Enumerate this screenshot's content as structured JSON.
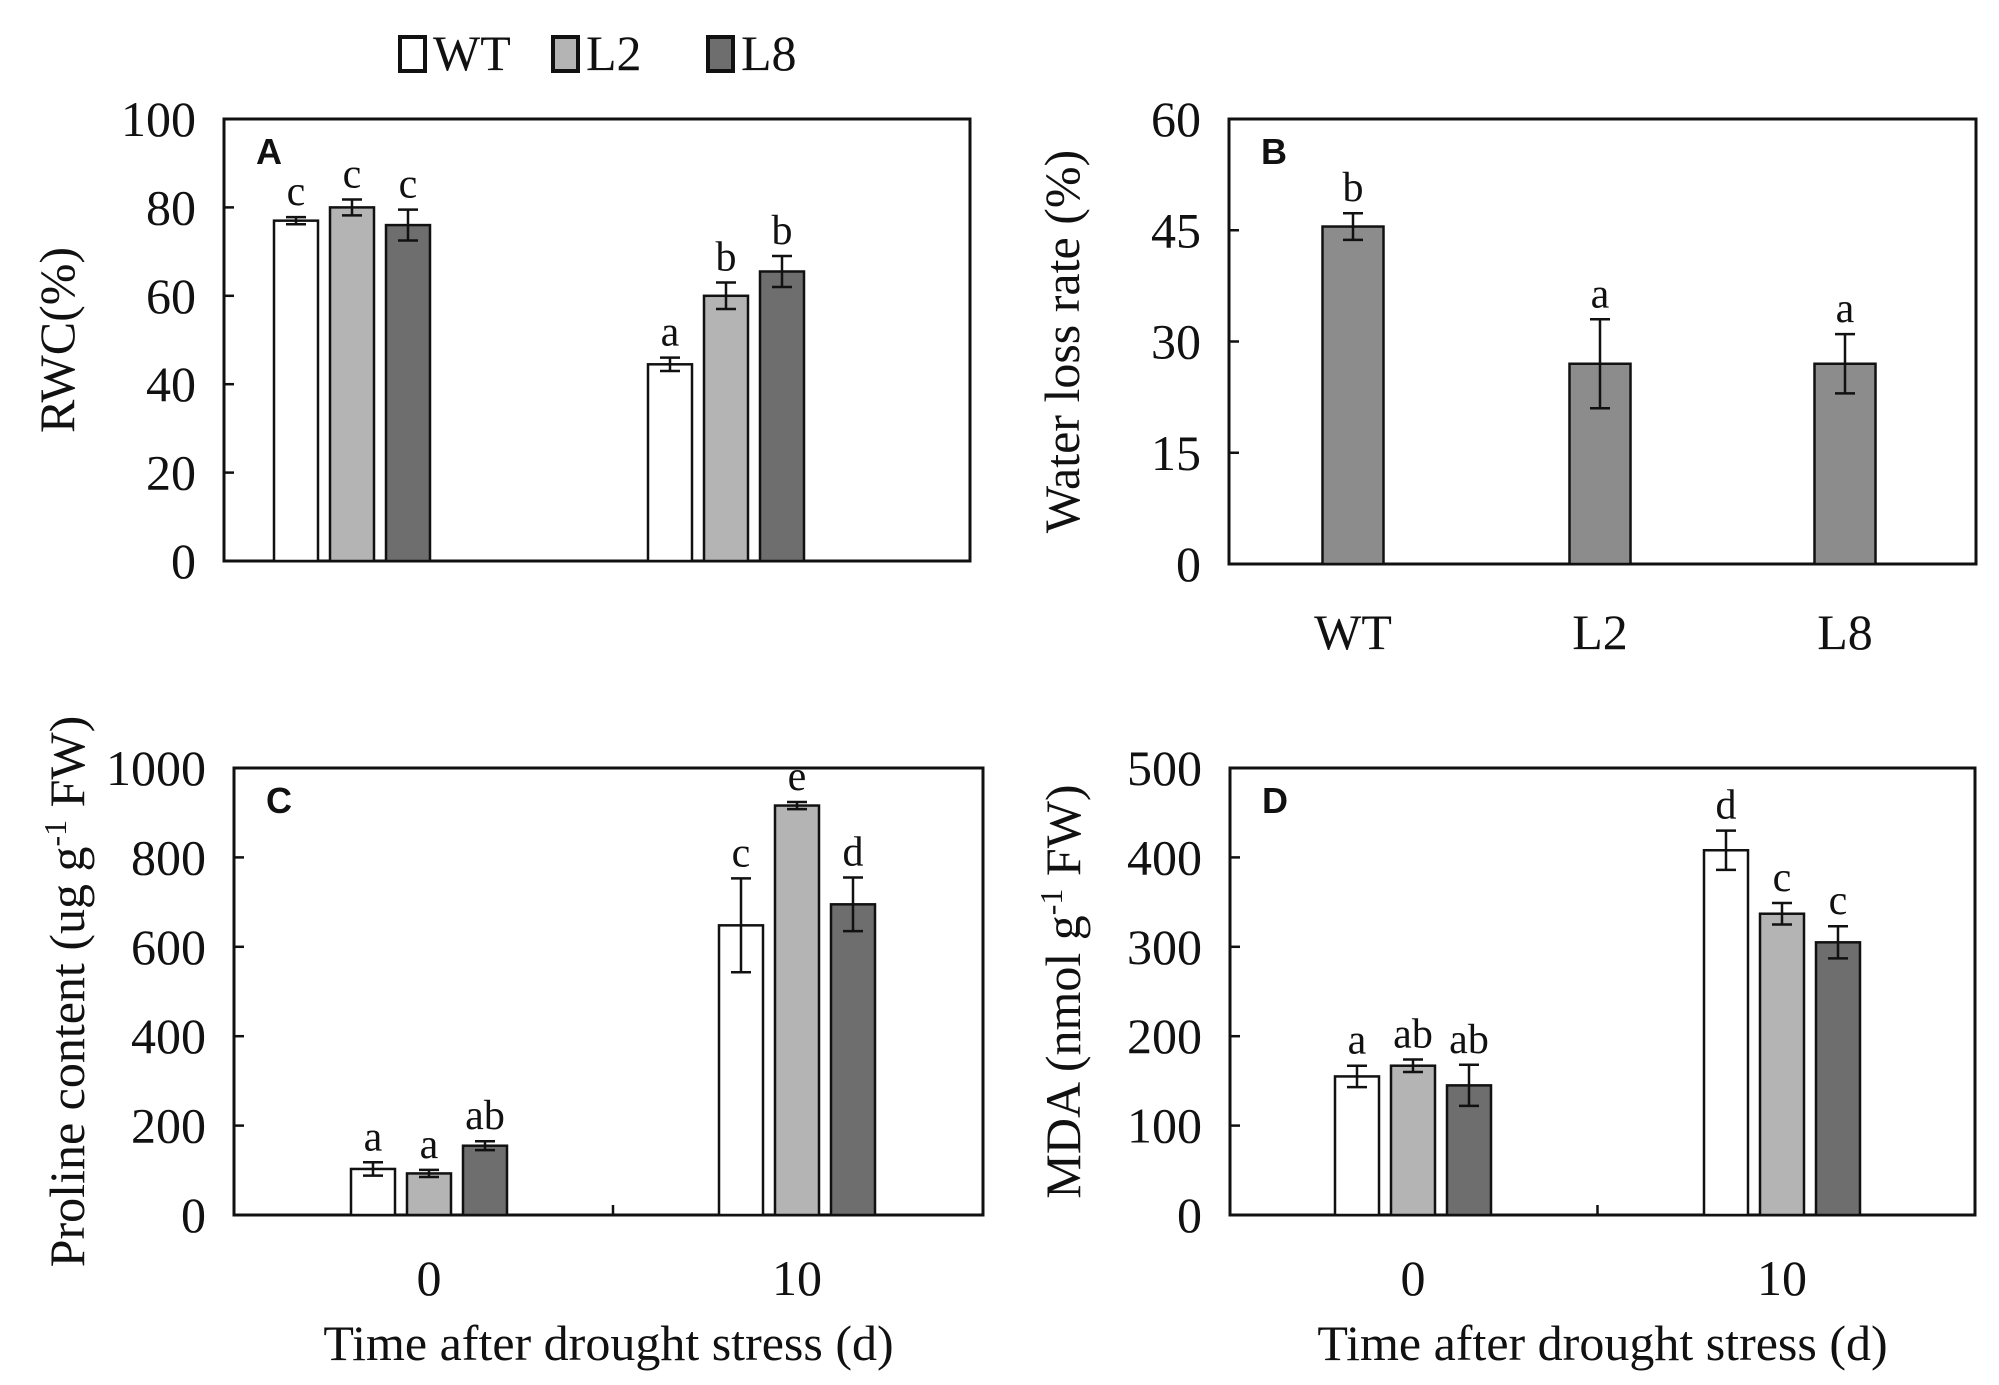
{
  "legend": {
    "items": [
      {
        "label": "WT",
        "color": "#ffffff"
      },
      {
        "label": "L2",
        "color": "#b4b4b4"
      },
      {
        "label": "L8",
        "color": "#6e6e6e"
      }
    ]
  },
  "colors": {
    "WT": "#ffffff",
    "L2": "#b4b4b4",
    "L8": "#6e6e6e",
    "single": "#8c8c8c",
    "stroke": "#111111"
  },
  "chart_data": [
    {
      "id": "A",
      "type": "bar",
      "panel_label": "A",
      "title": "",
      "xlabel": "",
      "ylabel": "RWC(%)",
      "ylim": [
        0,
        100
      ],
      "yticks": [
        0,
        20,
        40,
        60,
        80,
        100
      ],
      "categories": [
        "",
        ""
      ],
      "series": [
        {
          "name": "WT",
          "values": [
            77,
            44.5
          ],
          "errors": [
            0.8,
            1.5
          ],
          "letters": [
            "c",
            "a"
          ]
        },
        {
          "name": "L2",
          "values": [
            80,
            60
          ],
          "errors": [
            1.8,
            3
          ],
          "letters": [
            "c",
            "b"
          ]
        },
        {
          "name": "L8",
          "values": [
            76,
            65.5
          ],
          "errors": [
            3.5,
            3.5
          ],
          "letters": [
            "c",
            "b"
          ]
        }
      ]
    },
    {
      "id": "B",
      "type": "bar",
      "panel_label": "B",
      "title": "",
      "xlabel": "",
      "ylabel": "Water loss rate (%)",
      "ylim": [
        0,
        60
      ],
      "yticks": [
        0,
        15,
        30,
        45,
        60
      ],
      "categories": [
        "WT",
        "L2",
        "L8"
      ],
      "series": [
        {
          "name": "Water loss rate",
          "values": [
            45.5,
            27,
            27
          ],
          "errors": [
            1.8,
            6,
            4
          ],
          "letters": [
            "b",
            "a",
            "a"
          ]
        }
      ]
    },
    {
      "id": "C",
      "type": "bar",
      "panel_label": "C",
      "title": "",
      "xlabel": "Time after drought stress (d)",
      "ylabel": "Proline content (ug g",
      "ylabel_sup": "-1",
      "ylabel_end": " FW)",
      "ylim": [
        0,
        1000
      ],
      "yticks": [
        0,
        200,
        400,
        600,
        800,
        1000
      ],
      "categories": [
        "0",
        "10"
      ],
      "series": [
        {
          "name": "WT",
          "values": [
            103,
            648
          ],
          "errors": [
            15,
            105
          ],
          "letters": [
            "a",
            "c"
          ]
        },
        {
          "name": "L2",
          "values": [
            93,
            916
          ],
          "errors": [
            8,
            8
          ],
          "letters": [
            "a",
            "e"
          ]
        },
        {
          "name": "L8",
          "values": [
            155,
            695
          ],
          "errors": [
            10,
            60
          ],
          "letters": [
            "ab",
            "d"
          ]
        }
      ]
    },
    {
      "id": "D",
      "type": "bar",
      "panel_label": "D",
      "title": "",
      "xlabel": "Time after drought stress (d)",
      "ylabel": "MDA (nmol g",
      "ylabel_sup": "-1",
      "ylabel_end": " FW)",
      "ylim": [
        0,
        500
      ],
      "yticks": [
        0,
        100,
        200,
        300,
        400,
        500
      ],
      "categories": [
        "0",
        "10"
      ],
      "series": [
        {
          "name": "WT",
          "values": [
            155,
            408
          ],
          "errors": [
            12,
            22
          ],
          "letters": [
            "a",
            "d"
          ]
        },
        {
          "name": "L2",
          "values": [
            167,
            337
          ],
          "errors": [
            7,
            12
          ],
          "letters": [
            "ab",
            "c"
          ]
        },
        {
          "name": "L8",
          "values": [
            145,
            305
          ],
          "errors": [
            23,
            18
          ],
          "letters": [
            "ab",
            "c"
          ]
        }
      ]
    }
  ]
}
